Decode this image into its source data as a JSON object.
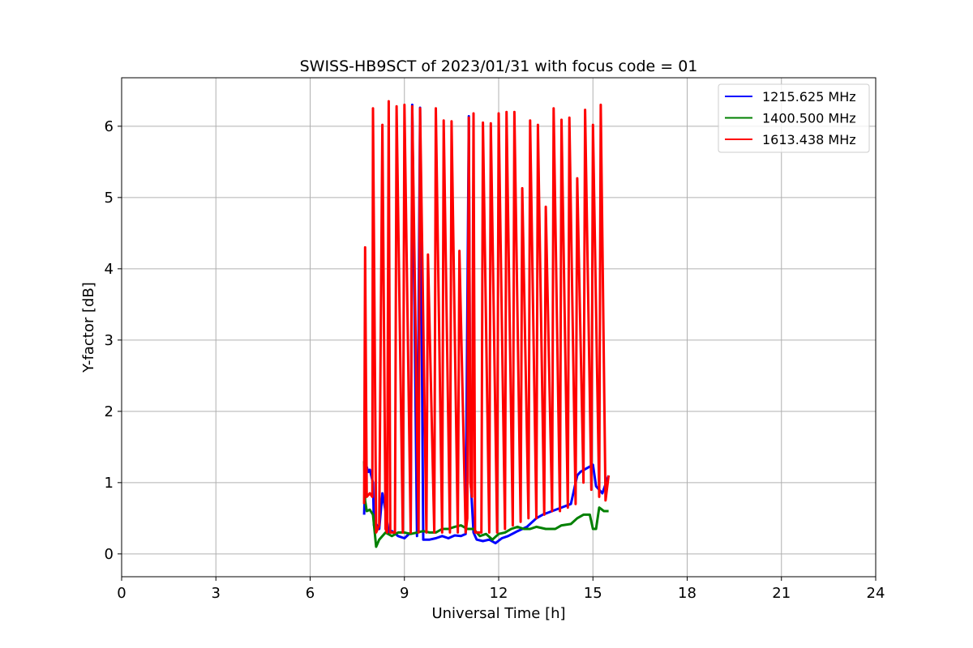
{
  "chart_data": {
    "type": "line",
    "title": "SWISS-HB9SCT of 2023/01/31 with focus code = 01",
    "xlabel": "Universal Time [h]",
    "ylabel": "Y-factor [dB]",
    "xlim": [
      0,
      24
    ],
    "ylim": [
      -0.32,
      6.68
    ],
    "xticks": [
      0,
      3,
      6,
      9,
      12,
      15,
      18,
      21,
      24
    ],
    "yticks": [
      0,
      1,
      2,
      3,
      4,
      5,
      6
    ],
    "grid": true,
    "legend_position": "top-right",
    "series": [
      {
        "name": "1215.625 MHz",
        "color": "#0000ff",
        "x": [
          7.72,
          7.76,
          7.8,
          7.85,
          7.9,
          8.0,
          8.03,
          8.1,
          8.2,
          8.3,
          8.4,
          8.5,
          8.6,
          8.8,
          9.0,
          9.2,
          9.25,
          9.4,
          9.5,
          9.6,
          9.8,
          10.0,
          10.2,
          10.4,
          10.6,
          10.8,
          10.95,
          11.05,
          11.1,
          11.2,
          11.3,
          11.5,
          11.7,
          11.9,
          12.1,
          12.3,
          12.6,
          12.9,
          13.2,
          13.4,
          13.7,
          14.0,
          14.3,
          14.5,
          14.6,
          14.8,
          15.0,
          15.1,
          15.3,
          15.5
        ],
        "y": [
          0.55,
          1.2,
          1.22,
          1.15,
          1.18,
          1.0,
          0.4,
          0.42,
          0.35,
          0.85,
          0.6,
          0.3,
          0.32,
          0.25,
          0.22,
          0.3,
          6.3,
          0.25,
          6.26,
          0.2,
          0.2,
          0.22,
          0.25,
          0.22,
          0.26,
          0.25,
          0.28,
          6.14,
          1.1,
          0.3,
          0.2,
          0.18,
          0.2,
          0.15,
          0.22,
          0.25,
          0.32,
          0.38,
          0.5,
          0.55,
          0.6,
          0.65,
          0.7,
          1.1,
          1.15,
          1.2,
          1.25,
          0.95,
          0.85,
          1.1
        ]
      },
      {
        "name": "1400.500 MHz",
        "color": "#008000",
        "x": [
          7.72,
          7.75,
          7.8,
          7.9,
          8.0,
          8.1,
          8.2,
          8.4,
          8.6,
          8.8,
          9.0,
          9.2,
          9.4,
          9.6,
          9.8,
          10.0,
          10.2,
          10.4,
          10.6,
          10.8,
          11.0,
          11.2,
          11.4,
          11.6,
          11.8,
          12.0,
          12.2,
          12.4,
          12.6,
          12.8,
          13.0,
          13.2,
          13.5,
          13.8,
          14.0,
          14.3,
          14.5,
          14.7,
          14.9,
          15.0,
          15.1,
          15.2,
          15.35,
          15.5
        ],
        "y": [
          1.3,
          0.75,
          0.6,
          0.62,
          0.55,
          0.1,
          0.2,
          0.3,
          0.25,
          0.3,
          0.3,
          0.28,
          0.3,
          0.32,
          0.3,
          0.3,
          0.35,
          0.35,
          0.38,
          0.4,
          0.35,
          0.35,
          0.25,
          0.28,
          0.2,
          0.28,
          0.3,
          0.35,
          0.38,
          0.35,
          0.35,
          0.38,
          0.35,
          0.35,
          0.4,
          0.42,
          0.5,
          0.55,
          0.55,
          0.35,
          0.35,
          0.65,
          0.6,
          0.6
        ]
      },
      {
        "name": "1613.438 MHz",
        "color": "#ff0000",
        "x": [
          7.72,
          7.75,
          7.8,
          7.9,
          7.98,
          8.0,
          8.1,
          8.2,
          8.3,
          8.4,
          8.45,
          8.5,
          8.55,
          8.7,
          8.75,
          8.95,
          9.0,
          9.2,
          9.25,
          9.45,
          9.5,
          9.7,
          9.75,
          9.95,
          10.0,
          10.2,
          10.25,
          10.45,
          10.5,
          10.7,
          10.75,
          10.95,
          11.0,
          11.05,
          11.1,
          11.15,
          11.2,
          11.25,
          11.45,
          11.5,
          11.7,
          11.75,
          11.95,
          12.0,
          12.2,
          12.25,
          12.45,
          12.5,
          12.7,
          12.75,
          12.95,
          13.0,
          13.2,
          13.25,
          13.45,
          13.5,
          13.7,
          13.75,
          13.95,
          14.0,
          14.2,
          14.25,
          14.45,
          14.5,
          14.7,
          14.75,
          14.95,
          15.0,
          15.2,
          15.25,
          15.4,
          15.5
        ],
        "y": [
          0.7,
          4.3,
          0.8,
          0.85,
          0.8,
          6.25,
          0.3,
          0.4,
          6.02,
          0.35,
          0.3,
          6.35,
          0.3,
          0.3,
          6.28,
          0.3,
          6.3,
          0.3,
          6.28,
          0.3,
          6.25,
          0.3,
          4.2,
          0.3,
          6.25,
          0.3,
          6.08,
          0.3,
          6.07,
          0.3,
          4.25,
          0.3,
          0.5,
          6.12,
          1.0,
          0.8,
          6.18,
          0.3,
          0.3,
          6.05,
          0.3,
          6.04,
          0.3,
          6.18,
          0.35,
          6.2,
          0.4,
          6.2,
          0.45,
          5.13,
          0.5,
          6.08,
          0.5,
          6.02,
          0.55,
          4.87,
          0.6,
          6.25,
          0.6,
          6.09,
          0.65,
          6.12,
          0.7,
          5.27,
          1.0,
          6.23,
          0.9,
          6.02,
          0.8,
          6.3,
          0.75,
          1.1
        ]
      }
    ]
  }
}
